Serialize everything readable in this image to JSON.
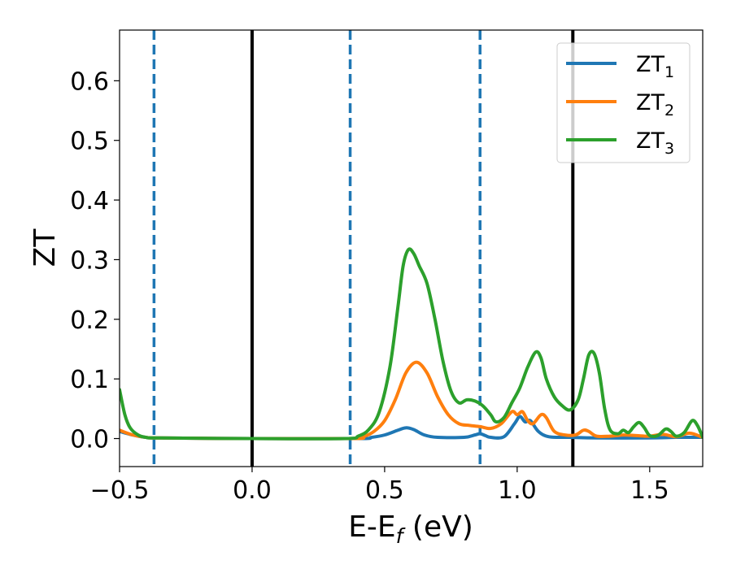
{
  "chart_data": {
    "type": "line",
    "xlabel": "E-E",
    "xlabel_sub": "f",
    "xlabel_unit": " (eV)",
    "ylabel": "ZT",
    "xlim": [
      -0.5,
      1.7
    ],
    "ylim": [
      -0.047,
      0.685
    ],
    "xticks": [
      -0.5,
      0.0,
      0.5,
      1.0,
      1.5
    ],
    "xtick_labels": [
      "−0.5",
      "0.0",
      "0.5",
      "1.0",
      "1.5"
    ],
    "yticks": [
      0.0,
      0.1,
      0.2,
      0.3,
      0.4,
      0.5,
      0.6
    ],
    "ytick_labels": [
      "0.0",
      "0.1",
      "0.2",
      "0.3",
      "0.4",
      "0.5",
      "0.6"
    ],
    "grid": false,
    "legend_position": "top-right",
    "vertical_lines": [
      {
        "x": -0.37,
        "style": "dashed",
        "color": "#1f77b4"
      },
      {
        "x": 0.0,
        "style": "solid",
        "color": "#000000"
      },
      {
        "x": 0.37,
        "style": "dashed",
        "color": "#1f77b4"
      },
      {
        "x": 0.86,
        "style": "dashed",
        "color": "#1f77b4"
      },
      {
        "x": 1.21,
        "style": "solid",
        "color": "#000000"
      }
    ],
    "series": [
      {
        "name": "ZT",
        "name_sub": "1",
        "color": "#1f77b4",
        "points": [
          [
            -0.5,
            0.012
          ],
          [
            -0.45,
            0.006
          ],
          [
            -0.4,
            0.002
          ],
          [
            -0.35,
            0.001
          ],
          [
            0.0,
            0.0
          ],
          [
            0.4,
            0.0
          ],
          [
            0.45,
            0.002
          ],
          [
            0.5,
            0.006
          ],
          [
            0.55,
            0.014
          ],
          [
            0.58,
            0.018
          ],
          [
            0.61,
            0.015
          ],
          [
            0.65,
            0.006
          ],
          [
            0.7,
            0.002
          ],
          [
            0.8,
            0.002
          ],
          [
            0.84,
            0.006
          ],
          [
            0.86,
            0.008
          ],
          [
            0.88,
            0.005
          ],
          [
            0.9,
            0.002
          ],
          [
            0.95,
            0.003
          ],
          [
            0.99,
            0.025
          ],
          [
            1.01,
            0.037
          ],
          [
            1.03,
            0.028
          ],
          [
            1.05,
            0.03
          ],
          [
            1.08,
            0.012
          ],
          [
            1.12,
            0.003
          ],
          [
            1.2,
            0.002
          ],
          [
            1.3,
            0.001
          ],
          [
            1.5,
            0.001
          ],
          [
            1.6,
            0.002
          ],
          [
            1.7,
            0.002
          ]
        ]
      },
      {
        "name": "ZT",
        "name_sub": "2",
        "color": "#ff7f0e",
        "points": [
          [
            -0.5,
            0.014
          ],
          [
            -0.45,
            0.006
          ],
          [
            -0.4,
            0.002
          ],
          [
            -0.35,
            0.001
          ],
          [
            0.0,
            0.0
          ],
          [
            0.38,
            0.0
          ],
          [
            0.42,
            0.003
          ],
          [
            0.46,
            0.012
          ],
          [
            0.5,
            0.03
          ],
          [
            0.54,
            0.065
          ],
          [
            0.58,
            0.11
          ],
          [
            0.62,
            0.128
          ],
          [
            0.66,
            0.11
          ],
          [
            0.7,
            0.07
          ],
          [
            0.74,
            0.04
          ],
          [
            0.78,
            0.025
          ],
          [
            0.82,
            0.022
          ],
          [
            0.86,
            0.02
          ],
          [
            0.9,
            0.017
          ],
          [
            0.94,
            0.025
          ],
          [
            0.98,
            0.045
          ],
          [
            1.0,
            0.04
          ],
          [
            1.02,
            0.045
          ],
          [
            1.04,
            0.03
          ],
          [
            1.06,
            0.025
          ],
          [
            1.09,
            0.04
          ],
          [
            1.11,
            0.035
          ],
          [
            1.14,
            0.012
          ],
          [
            1.18,
            0.006
          ],
          [
            1.22,
            0.006
          ],
          [
            1.25,
            0.014
          ],
          [
            1.27,
            0.012
          ],
          [
            1.3,
            0.004
          ],
          [
            1.35,
            0.004
          ],
          [
            1.4,
            0.006
          ],
          [
            1.45,
            0.005
          ],
          [
            1.5,
            0.004
          ],
          [
            1.55,
            0.007
          ],
          [
            1.6,
            0.003
          ],
          [
            1.65,
            0.009
          ],
          [
            1.7,
            0.002
          ]
        ]
      },
      {
        "name": "ZT",
        "name_sub": "3",
        "color": "#2ca02c",
        "points": [
          [
            -0.5,
            0.082
          ],
          [
            -0.48,
            0.04
          ],
          [
            -0.46,
            0.018
          ],
          [
            -0.43,
            0.006
          ],
          [
            -0.4,
            0.002
          ],
          [
            -0.35,
            0.001
          ],
          [
            0.0,
            0.0
          ],
          [
            0.35,
            0.0
          ],
          [
            0.4,
            0.004
          ],
          [
            0.44,
            0.015
          ],
          [
            0.48,
            0.045
          ],
          [
            0.52,
            0.12
          ],
          [
            0.55,
            0.22
          ],
          [
            0.57,
            0.29
          ],
          [
            0.59,
            0.317
          ],
          [
            0.61,
            0.31
          ],
          [
            0.63,
            0.29
          ],
          [
            0.66,
            0.26
          ],
          [
            0.69,
            0.2
          ],
          [
            0.72,
            0.13
          ],
          [
            0.75,
            0.08
          ],
          [
            0.78,
            0.06
          ],
          [
            0.81,
            0.065
          ],
          [
            0.84,
            0.063
          ],
          [
            0.87,
            0.055
          ],
          [
            0.9,
            0.04
          ],
          [
            0.92,
            0.028
          ],
          [
            0.95,
            0.035
          ],
          [
            0.98,
            0.06
          ],
          [
            1.01,
            0.085
          ],
          [
            1.04,
            0.12
          ],
          [
            1.07,
            0.145
          ],
          [
            1.09,
            0.135
          ],
          [
            1.11,
            0.1
          ],
          [
            1.14,
            0.07
          ],
          [
            1.17,
            0.055
          ],
          [
            1.2,
            0.048
          ],
          [
            1.23,
            0.065
          ],
          [
            1.25,
            0.1
          ],
          [
            1.27,
            0.14
          ],
          [
            1.29,
            0.143
          ],
          [
            1.31,
            0.11
          ],
          [
            1.33,
            0.05
          ],
          [
            1.35,
            0.015
          ],
          [
            1.38,
            0.008
          ],
          [
            1.4,
            0.014
          ],
          [
            1.42,
            0.01
          ],
          [
            1.44,
            0.02
          ],
          [
            1.46,
            0.027
          ],
          [
            1.48,
            0.018
          ],
          [
            1.5,
            0.005
          ],
          [
            1.53,
            0.005
          ],
          [
            1.56,
            0.016
          ],
          [
            1.58,
            0.012
          ],
          [
            1.6,
            0.004
          ],
          [
            1.63,
            0.01
          ],
          [
            1.66,
            0.03
          ],
          [
            1.68,
            0.022
          ],
          [
            1.7,
            0.002
          ]
        ]
      }
    ]
  }
}
